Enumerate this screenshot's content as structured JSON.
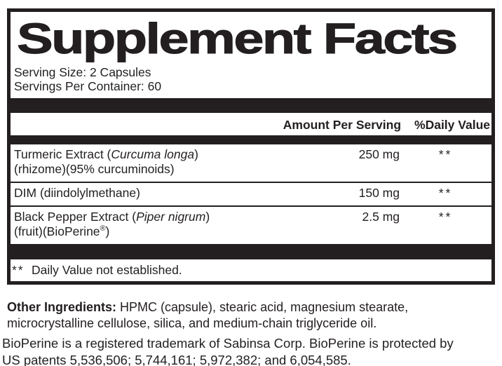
{
  "panel": {
    "title": "Supplement Facts",
    "serving_size": "Serving Size: 2 Capsules",
    "servings_per_container": "Servings Per Container: 60",
    "columns": {
      "amount": "Amount Per Serving",
      "daily_value": "%Daily Value"
    },
    "rows": [
      {
        "name_pre": "Turmeric Extract (",
        "name_italic": "Curcuma longa",
        "name_post": ")",
        "line2": "(rhizome)(95% curcuminoids)",
        "amount": "250 mg",
        "daily_value": "**"
      },
      {
        "name": "DIM (diindolylmethane)",
        "amount": "150 mg",
        "daily_value": "**"
      },
      {
        "name_pre": "Black Pepper Extract (",
        "name_italic": "Piper nigrum",
        "name_post": ")",
        "line2_pre": "(fruit)(BioPerine",
        "line2_sup": "®",
        "line2_post": ")",
        "amount": "2.5 mg",
        "daily_value": "**"
      }
    ],
    "footnote": {
      "symbol": "**",
      "text": "Daily Value not established."
    }
  },
  "other_ingredients": {
    "label": "Other Ingredients:",
    "text": " HPMC (capsule),  stearic acid, magnesium stearate, microcrystalline cellulose, silica, and medium-chain triglyceride oil."
  },
  "trademark_notice": "BioPerine is a registered trademark of Sabinsa Corp. BioPerine is protected by US patents 5,536,506; 5,744,161; 5,972,382; and 6,054,585.",
  "colors": {
    "ink": "#231f20",
    "background": "#ffffff"
  }
}
